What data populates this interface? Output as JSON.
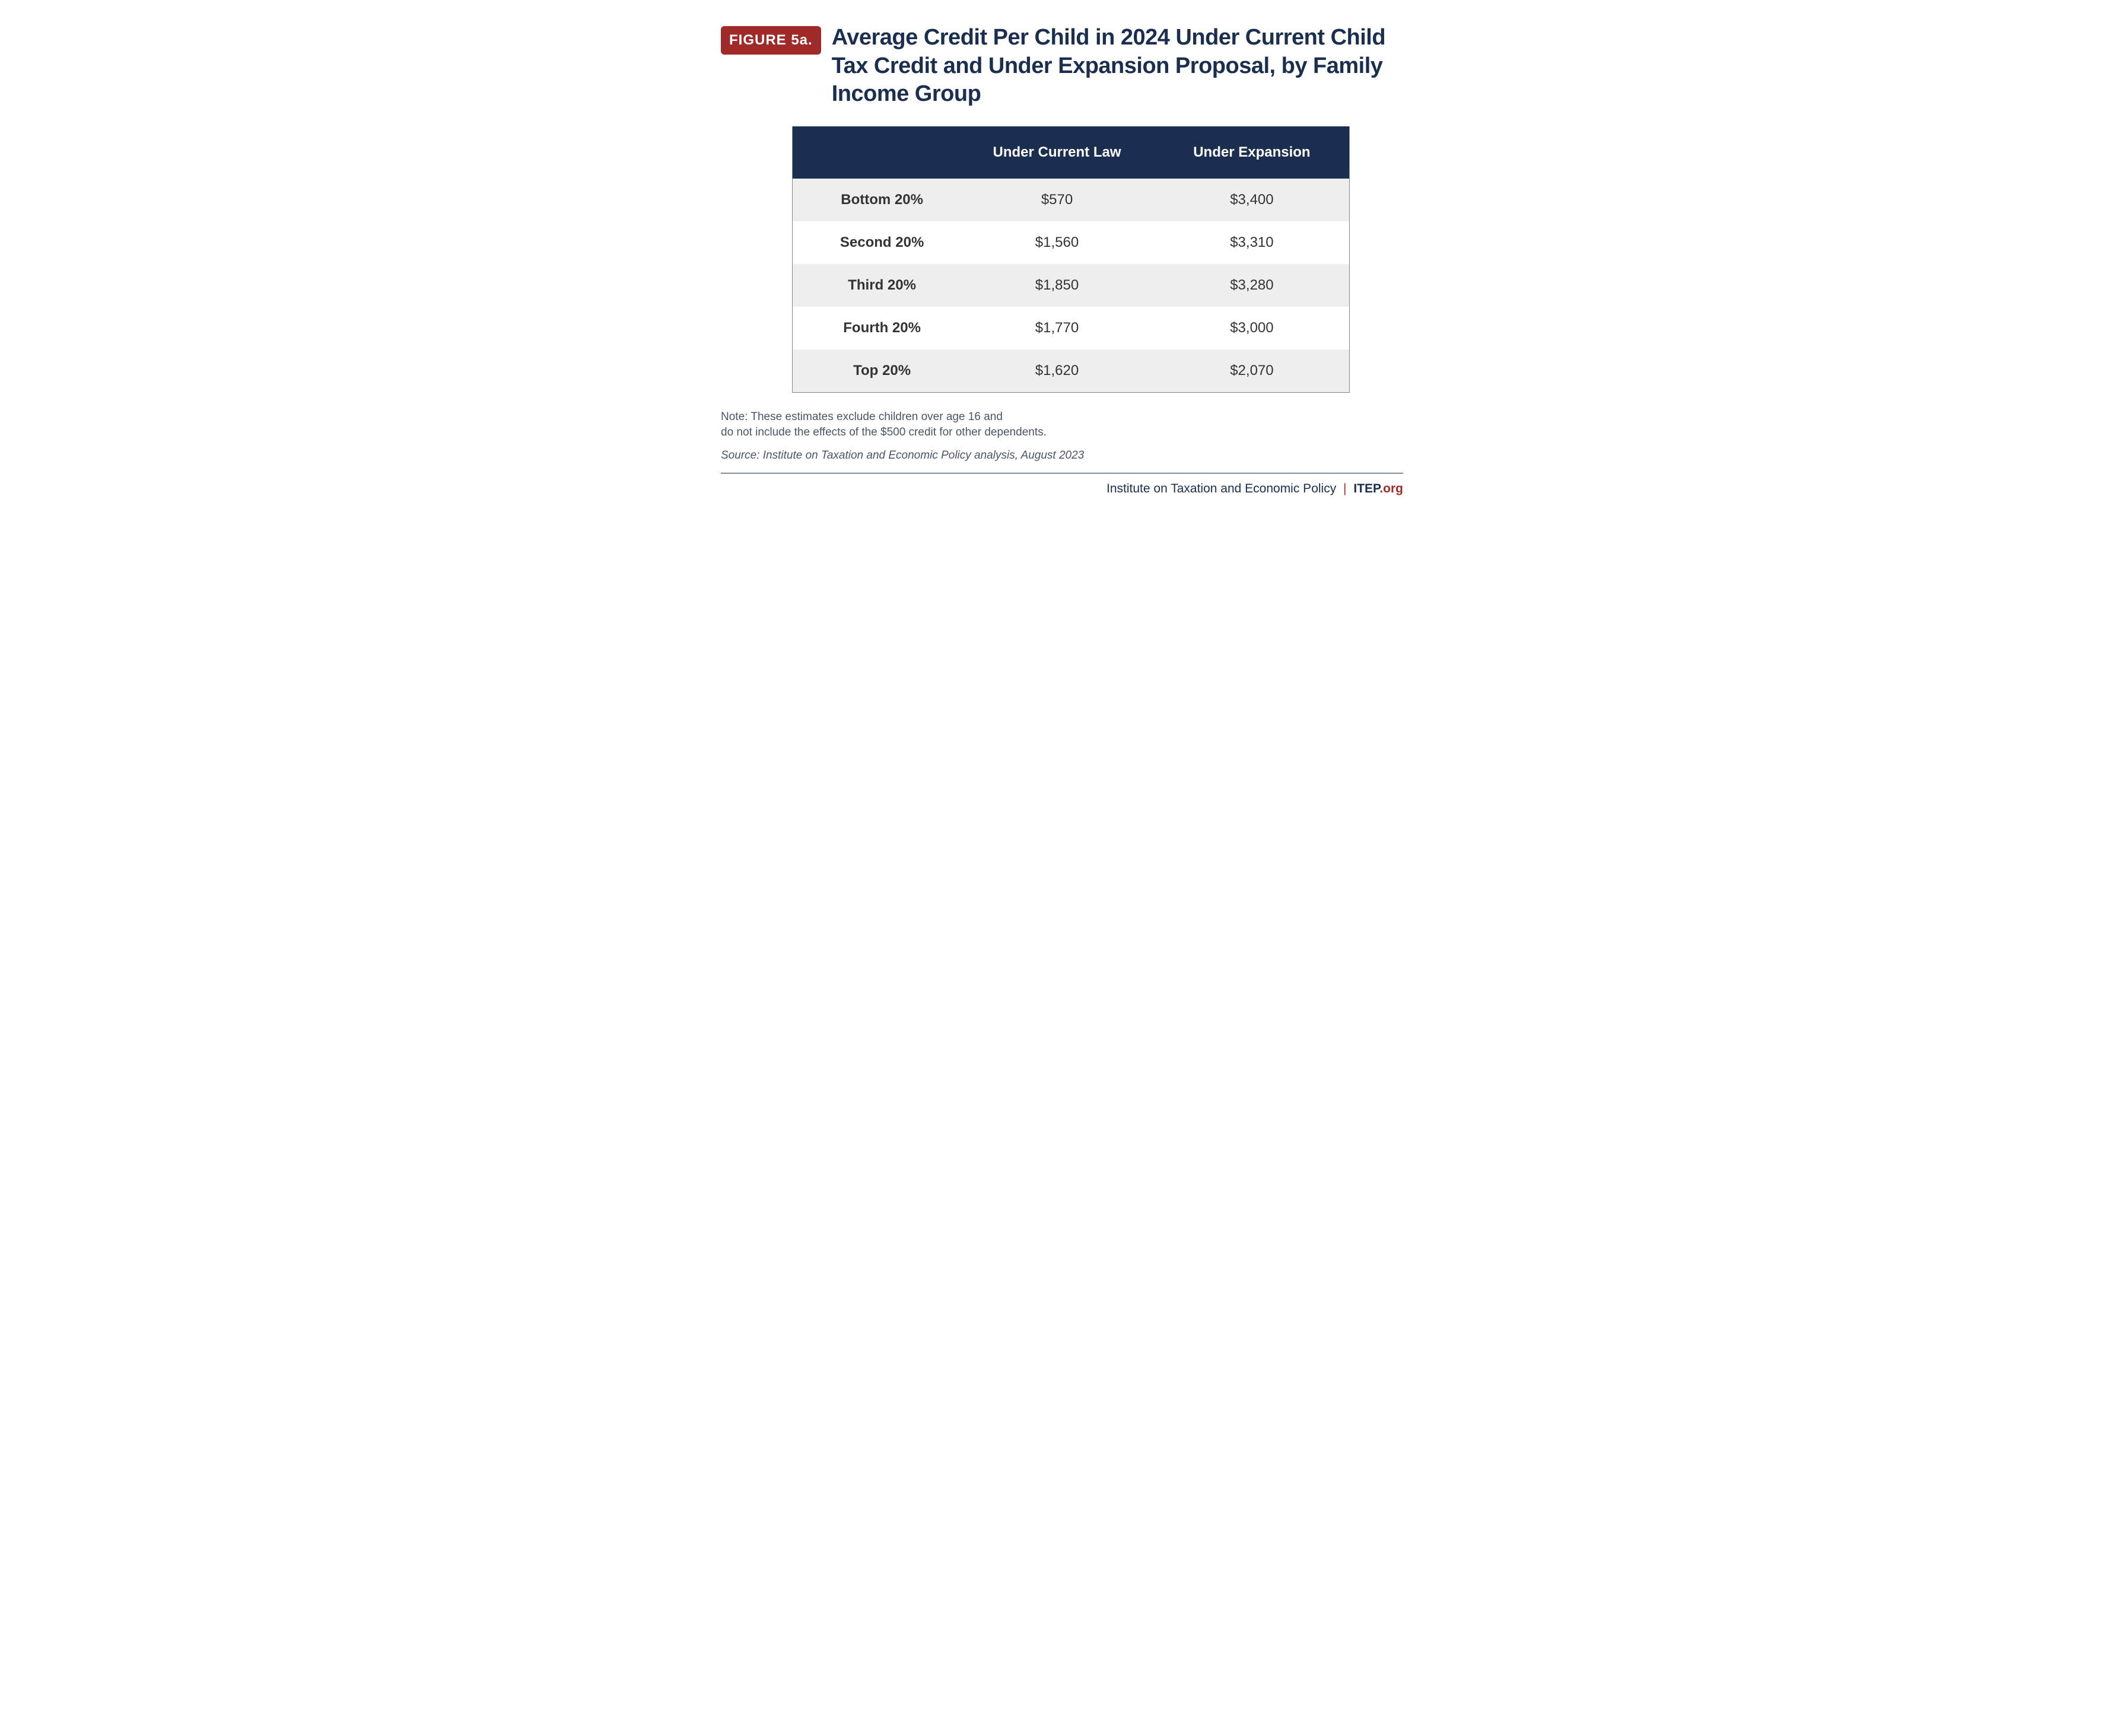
{
  "figure_label": "FIGURE 5a.",
  "title": "Average Credit Per Child in 2024 Under Current Child Tax Credit and Under Expansion Proposal, by Family Income Group",
  "table": {
    "type": "table",
    "header_bg": "#1a2e4f",
    "header_fg": "#ffffff",
    "row_alt_bg": "#eeeeee",
    "row_bg": "#ffffff",
    "border_color": "#888888",
    "header_fontsize": 24,
    "cell_fontsize": 24,
    "columns": [
      "",
      "Under Current Law",
      "Under Expansion"
    ],
    "rows": [
      {
        "label": "Bottom 20%",
        "current": "$570",
        "expansion": "$3,400"
      },
      {
        "label": "Second 20%",
        "current": "$1,560",
        "expansion": "$3,310"
      },
      {
        "label": "Third 20%",
        "current": "$1,850",
        "expansion": "$3,280"
      },
      {
        "label": "Fourth 20%",
        "current": "$1,770",
        "expansion": "$3,000"
      },
      {
        "label": "Top 20%",
        "current": "$1,620",
        "expansion": "$2,070"
      }
    ]
  },
  "note_line1": "Note: These estimates exclude children over age 16 and",
  "note_line2": "do not include the effects of the $500 credit for other dependents.",
  "source": "Source: Institute on Taxation and Economic Policy analysis, August 2023",
  "footer": {
    "org": "Institute on Taxation and Economic Policy",
    "divider": "|",
    "brand": "ITEP",
    "brand_suffix": ".org"
  },
  "colors": {
    "badge_bg": "#a02a2a",
    "badge_fg": "#ffffff",
    "title_color": "#1a2e4f",
    "note_color": "#4a5568",
    "accent_red": "#a02a2a",
    "background": "#ffffff"
  },
  "typography": {
    "title_fontsize": 38,
    "title_weight": 700,
    "badge_fontsize": 24,
    "note_fontsize": 19,
    "footer_fontsize": 21
  }
}
